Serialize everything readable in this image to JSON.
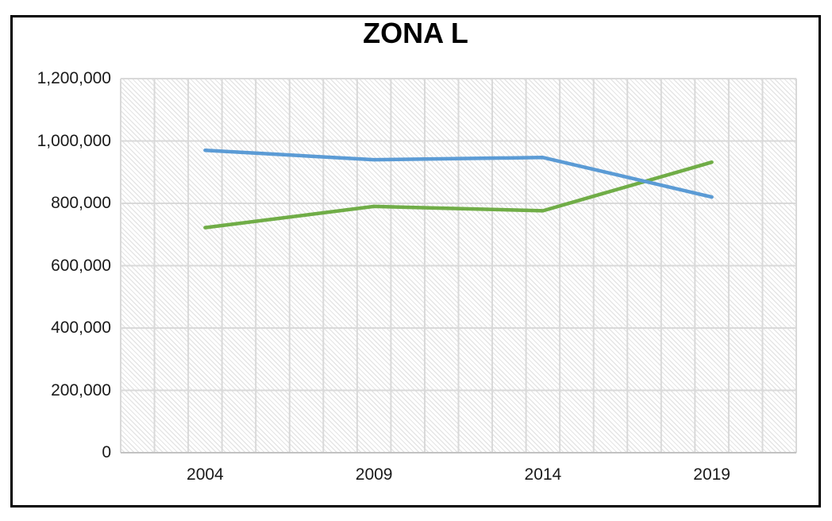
{
  "chart_data": {
    "type": "line",
    "title": "ZONA L",
    "categories": [
      "2004",
      "2009",
      "2014",
      "2019"
    ],
    "series": [
      {
        "name": "blue-series",
        "color": "#5B9BD5",
        "values": [
          970000,
          940000,
          947000,
          820000
        ]
      },
      {
        "name": "green-series",
        "color": "#70AD47",
        "values": [
          722000,
          790000,
          776000,
          932000
        ]
      }
    ],
    "xlabel": "",
    "ylabel": "",
    "ylim": [
      0,
      1200000
    ],
    "ytick_interval": 200000,
    "ytick_labels_bottom_up": [
      "0",
      "200,000",
      "400,000",
      "600,000",
      "800,000",
      "1,000,000",
      "1,200,000"
    ],
    "x_gridline_intervals": 20,
    "grid": "both",
    "legend": "none",
    "plot_background": "light-downward-diagonal-hatch"
  },
  "colors": {
    "line_blue": "#5B9BD5",
    "line_green": "#70AD47",
    "gridline": "#D9D9D9",
    "axis_line": "#C2C2C2",
    "hatch_stripe": "#E5E5E5",
    "frame_border": "#000000",
    "title_text": "#000000",
    "tick_text": "#1A1A1A"
  }
}
